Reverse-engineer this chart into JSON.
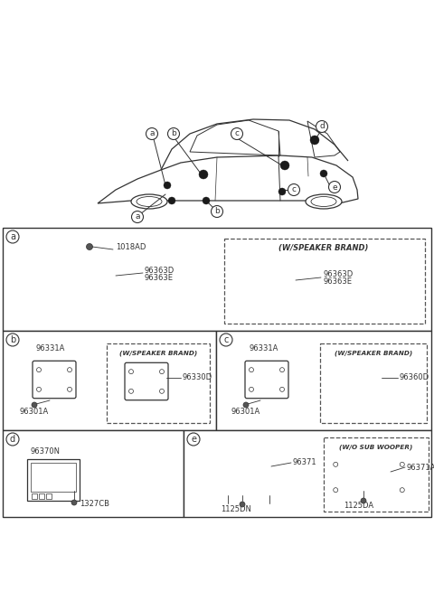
{
  "bg_color": "#ffffff",
  "line_color": "#333333",
  "fig_width": 4.8,
  "fig_height": 6.55,
  "dpi": 100,
  "parts": {
    "a_screw": "1018AD",
    "a_speaker1a": "96363D",
    "a_speaker1b": "96363E",
    "a_brand": "(W/SPEAKER BRAND)",
    "a_speaker2a": "96363D",
    "a_speaker2b": "96363E",
    "b_speaker1": "96331A",
    "b_bolt1": "96301A",
    "b_speaker2": "96330D",
    "b_brand": "(W/SPEAKER BRAND)",
    "c_speaker1": "96331A",
    "c_bolt1": "96301A",
    "c_speaker2": "96360D",
    "c_brand": "(W/SPEAKER BRAND)",
    "d_part1": "96370N",
    "d_part2": "1327CB",
    "e_speaker": "96371",
    "e_bolt": "1125DN",
    "e_speaker2": "96371A",
    "e_bolt2": "1125DA",
    "e_brand": "(W/O SUB WOOPER)"
  }
}
